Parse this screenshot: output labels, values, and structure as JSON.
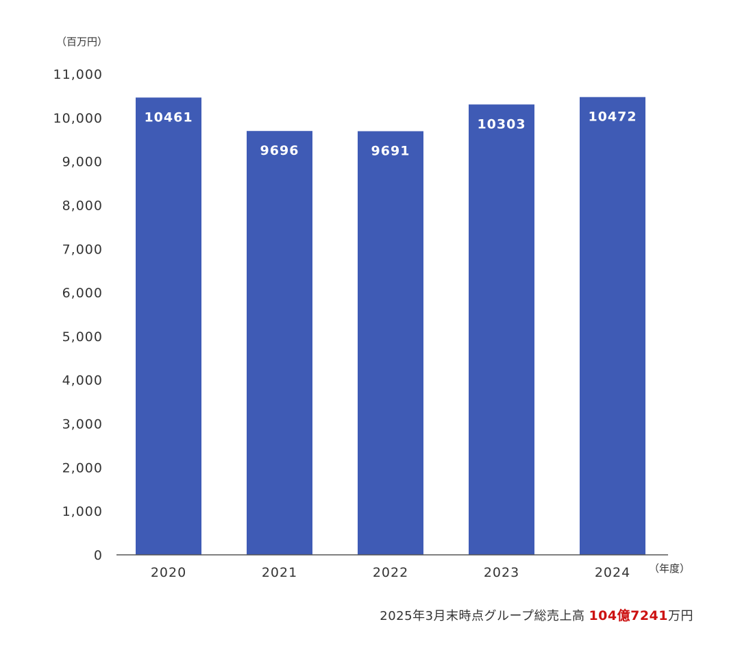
{
  "chart_data": {
    "type": "bar",
    "categories": [
      "2020",
      "2021",
      "2022",
      "2023",
      "2024"
    ],
    "values": [
      10461,
      9696,
      9691,
      10303,
      10472
    ],
    "data_labels": [
      "10461",
      "9696",
      "9691",
      "10303",
      "10472"
    ],
    "ylabel": "（百万円）",
    "xlabel": "（年度）",
    "ylim": [
      0,
      11000
    ],
    "yticks": [
      "0",
      "1,000",
      "2,000",
      "3,000",
      "4,000",
      "5,000",
      "6,000",
      "7,000",
      "8,000",
      "9,000",
      "10,000",
      "11,000"
    ],
    "grid": false,
    "bar_color": "#3f5bb5",
    "axis_color": "#555555"
  },
  "summary": {
    "prefix": "2025年3月末時点グループ総売上高",
    "value": "104億7241",
    "suffix": "万円",
    "value_color": "#cc1111"
  }
}
